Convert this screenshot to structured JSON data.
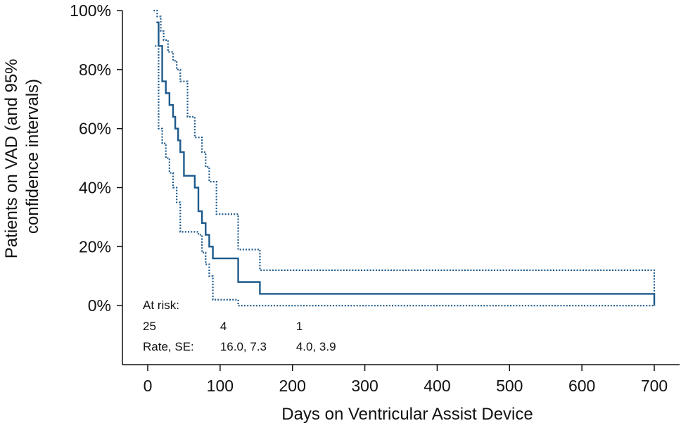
{
  "chart_data": {
    "type": "line",
    "xlabel": "Days on Ventricular Assist Device",
    "ylabel_lines": [
      "Patients on VAD (and 95%",
      "confidence intervals)"
    ],
    "xlim": [
      -35,
      735
    ],
    "ylim": [
      -20,
      100
    ],
    "x_ticks": [
      0,
      100,
      200,
      300,
      400,
      500,
      600,
      700
    ],
    "x_tick_labels": [
      "0",
      "100",
      "200",
      "300",
      "400",
      "500",
      "600",
      "700"
    ],
    "y_ticks": [
      0,
      20,
      40,
      60,
      80,
      100
    ],
    "y_tick_labels": [
      "0%",
      "20%",
      "40%",
      "60%",
      "80%",
      "100%"
    ],
    "line_color": "#1d5a8c",
    "series": [
      {
        "style": "solid",
        "x": [
          12,
          15,
          20,
          25,
          30,
          35,
          38,
          42,
          45,
          50,
          60,
          65,
          70,
          75,
          80,
          85,
          90,
          95,
          125,
          155,
          700,
          700
        ],
        "y": [
          96,
          88,
          76,
          72,
          68,
          64,
          60,
          56,
          52,
          44,
          44,
          40,
          32,
          28,
          24,
          20,
          16,
          16,
          8,
          4,
          4,
          0
        ]
      },
      {
        "style": "dotted",
        "x": [
          8,
          13,
          18,
          22,
          28,
          35,
          40,
          45,
          55,
          65,
          75,
          80,
          85,
          95,
          125,
          155,
          700,
          700
        ],
        "y": [
          100,
          98,
          93,
          90,
          86,
          83,
          80,
          76,
          64,
          57,
          52,
          47,
          42,
          31,
          19,
          12,
          12,
          0
        ]
      },
      {
        "style": "dotted",
        "x": [
          10,
          15,
          20,
          25,
          30,
          35,
          40,
          45,
          70,
          75,
          80,
          85,
          90,
          125,
          700
        ],
        "y": [
          88,
          60,
          55,
          50,
          45,
          40,
          35,
          25,
          24,
          18,
          14,
          10,
          2,
          0,
          0
        ]
      }
    ],
    "annotations": {
      "at_risk_label": "At risk:",
      "at_risk_values": [
        {
          "x": 0,
          "text": "25"
        },
        {
          "x": 100,
          "text": "4"
        },
        {
          "x": 205,
          "text": "1"
        }
      ],
      "rate_label": "Rate, SE:",
      "rate_values": [
        {
          "x": 100,
          "text": "16.0, 7.3"
        },
        {
          "x": 205,
          "text": "4.0, 3.9"
        }
      ]
    }
  }
}
